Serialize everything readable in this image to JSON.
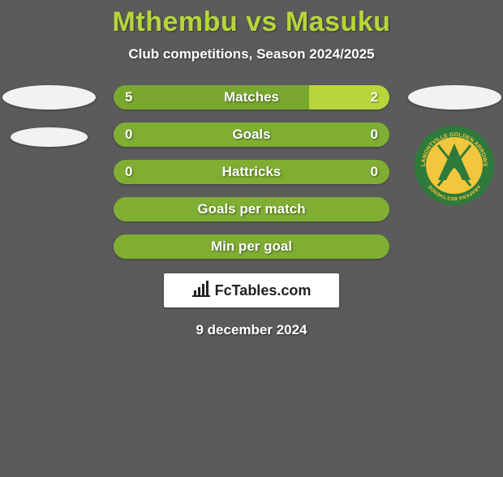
{
  "title": {
    "text": "Mthembu vs Masuku",
    "color": "#b7d63a",
    "fontsize": 34
  },
  "subtitle": {
    "text": "Club competitions, Season 2024/2025",
    "color": "#ffffff",
    "fontsize": 17
  },
  "colors": {
    "left": "#7aa82f",
    "right": "#b7d63a",
    "neutral": "#7fae33",
    "background": "#5b5b5b",
    "text": "#ffffff"
  },
  "sides": {
    "left": {
      "ellipses": 2,
      "badge": null
    },
    "right": {
      "ellipses": 1,
      "badge": {
        "name": "club-badge",
        "ring_color": "#2e7a3a",
        "inner_color": "#f2c63d",
        "arrow_color": "#2e7a3a",
        "top_text": "LAMONTVILLE",
        "mid_text": "GOLDEN ARROWS",
        "bottom_text": "ABAFANA BES'THENDE"
      }
    }
  },
  "bars": [
    {
      "label": "Matches",
      "left": "5",
      "right": "2",
      "left_pct": 71,
      "right_pct": 29,
      "show_values": true,
      "split": true
    },
    {
      "label": "Goals",
      "left": "0",
      "right": "0",
      "left_pct": 100,
      "right_pct": 0,
      "show_values": true,
      "split": false
    },
    {
      "label": "Hattricks",
      "left": "0",
      "right": "0",
      "left_pct": 100,
      "right_pct": 0,
      "show_values": true,
      "split": false
    },
    {
      "label": "Goals per match",
      "left": "",
      "right": "",
      "left_pct": 100,
      "right_pct": 0,
      "show_values": false,
      "split": false
    },
    {
      "label": "Min per goal",
      "left": "",
      "right": "",
      "left_pct": 100,
      "right_pct": 0,
      "show_values": false,
      "split": false
    }
  ],
  "brand": {
    "icon": "bar-chart-icon",
    "text": "FcTables.com"
  },
  "date": "9 december 2024"
}
